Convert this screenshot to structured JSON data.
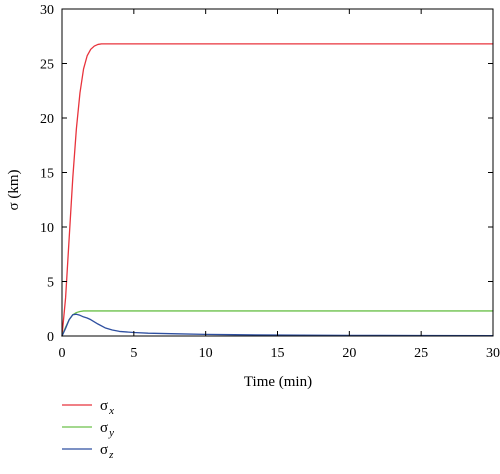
{
  "chart_data": {
    "type": "line",
    "xlabel": "Time (min)",
    "ylabel": "σ (km)",
    "xlim": [
      0,
      30
    ],
    "ylim": [
      0,
      30
    ],
    "x_ticks": [
      0,
      5,
      10,
      15,
      20,
      25,
      30
    ],
    "y_ticks": [
      0,
      5,
      10,
      15,
      20,
      25,
      30
    ],
    "grid": false,
    "legend_position": "bottom-left",
    "series": [
      {
        "name": "σx",
        "symbol": "σ",
        "subscript": "x",
        "color": "#e8333c",
        "x": [
          0,
          0.25,
          0.5,
          0.75,
          1.0,
          1.25,
          1.5,
          1.75,
          2.0,
          2.25,
          2.5,
          2.75,
          3.0,
          3.5,
          4,
          5,
          10,
          15,
          20,
          25,
          30
        ],
        "values": [
          0,
          3.5,
          9.0,
          14.5,
          19.0,
          22.3,
          24.5,
          25.7,
          26.3,
          26.6,
          26.75,
          26.8,
          26.8,
          26.8,
          26.8,
          26.8,
          26.8,
          26.8,
          26.8,
          26.8,
          26.8
        ]
      },
      {
        "name": "σy",
        "symbol": "σ",
        "subscript": "y",
        "color": "#6cc04a",
        "x": [
          0,
          0.25,
          0.5,
          0.75,
          1.0,
          1.25,
          1.5,
          2.0,
          2.5,
          3,
          5,
          10,
          15,
          20,
          25,
          30
        ],
        "values": [
          0,
          0.8,
          1.5,
          1.95,
          2.15,
          2.25,
          2.3,
          2.3,
          2.3,
          2.3,
          2.3,
          2.3,
          2.3,
          2.3,
          2.3,
          2.3
        ]
      },
      {
        "name": "σz",
        "symbol": "σ",
        "subscript": "z",
        "color": "#2e4fa0",
        "x": [
          0,
          0.25,
          0.5,
          0.75,
          1.0,
          1.25,
          1.5,
          1.75,
          2.0,
          2.5,
          3.0,
          3.5,
          4,
          5,
          6,
          8,
          10,
          12,
          15,
          20,
          25,
          30
        ],
        "values": [
          0,
          0.7,
          1.5,
          1.95,
          2.0,
          1.9,
          1.75,
          1.65,
          1.5,
          1.1,
          0.75,
          0.55,
          0.42,
          0.32,
          0.26,
          0.2,
          0.15,
          0.12,
          0.09,
          0.06,
          0.04,
          0.03
        ]
      }
    ]
  }
}
